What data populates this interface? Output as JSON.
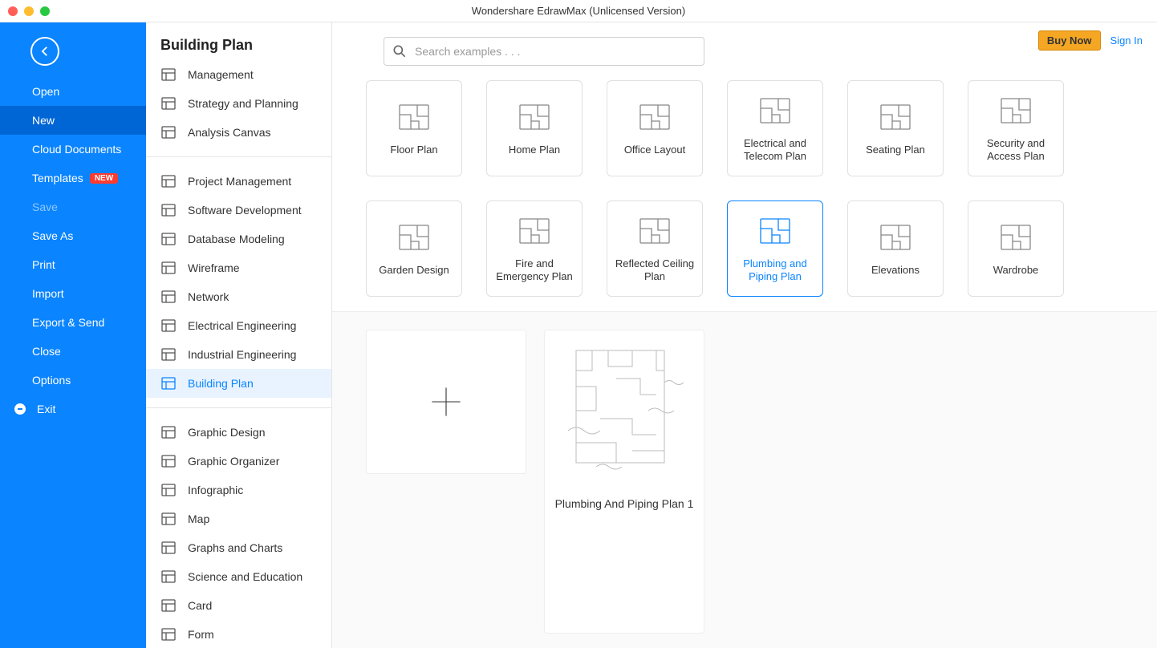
{
  "window": {
    "title": "Wondershare EdrawMax (Unlicensed Version)"
  },
  "topbar": {
    "buy_label": "Buy Now",
    "signin_label": "Sign In"
  },
  "search": {
    "placeholder": "Search examples . . ."
  },
  "nav": {
    "items": [
      {
        "label": "Open",
        "key": "open"
      },
      {
        "label": "New",
        "key": "new",
        "active": true
      },
      {
        "label": "Cloud Documents",
        "key": "cloud"
      },
      {
        "label": "Templates",
        "key": "templates",
        "badge": "NEW"
      },
      {
        "label": "Save",
        "key": "save",
        "disabled": true
      },
      {
        "label": "Save As",
        "key": "saveas"
      },
      {
        "label": "Print",
        "key": "print"
      },
      {
        "label": "Import",
        "key": "import"
      },
      {
        "label": "Export & Send",
        "key": "export"
      },
      {
        "label": "Close",
        "key": "close"
      },
      {
        "label": "Options",
        "key": "options"
      },
      {
        "label": "Exit",
        "key": "exit",
        "icon": "exit"
      }
    ]
  },
  "category": {
    "title": "Building Plan",
    "groups": [
      [
        {
          "label": "Management"
        },
        {
          "label": "Strategy and Planning"
        },
        {
          "label": "Analysis Canvas"
        }
      ],
      [
        {
          "label": "Project Management"
        },
        {
          "label": "Software Development"
        },
        {
          "label": "Database Modeling"
        },
        {
          "label": "Wireframe"
        },
        {
          "label": "Network"
        },
        {
          "label": "Electrical Engineering"
        },
        {
          "label": "Industrial Engineering"
        },
        {
          "label": "Building Plan",
          "selected": true
        }
      ],
      [
        {
          "label": "Graphic Design"
        },
        {
          "label": "Graphic Organizer"
        },
        {
          "label": "Infographic"
        },
        {
          "label": "Map"
        },
        {
          "label": "Graphs and Charts"
        },
        {
          "label": "Science and Education"
        },
        {
          "label": "Card"
        },
        {
          "label": "Form"
        }
      ]
    ]
  },
  "tiles": [
    {
      "label": "Floor Plan"
    },
    {
      "label": "Home Plan"
    },
    {
      "label": "Office Layout"
    },
    {
      "label": "Electrical and Telecom Plan"
    },
    {
      "label": "Seating Plan"
    },
    {
      "label": "Security and Access Plan"
    },
    {
      "label": "Garden Design"
    },
    {
      "label": "Fire and Emergency Plan"
    },
    {
      "label": "Reflected Ceiling Plan"
    },
    {
      "label": "Plumbing and Piping Plan",
      "selected": true
    },
    {
      "label": "Elevations"
    },
    {
      "label": "Wardrobe"
    }
  ],
  "examples": {
    "blank_label": "",
    "items": [
      {
        "label": "Plumbing And Piping Plan 1"
      }
    ]
  },
  "colors": {
    "primary": "#0a84ff",
    "nav_active": "#0066d6",
    "badge": "#ff3b30",
    "buy_bg": "#f5a623",
    "border": "#e0e0e0"
  }
}
